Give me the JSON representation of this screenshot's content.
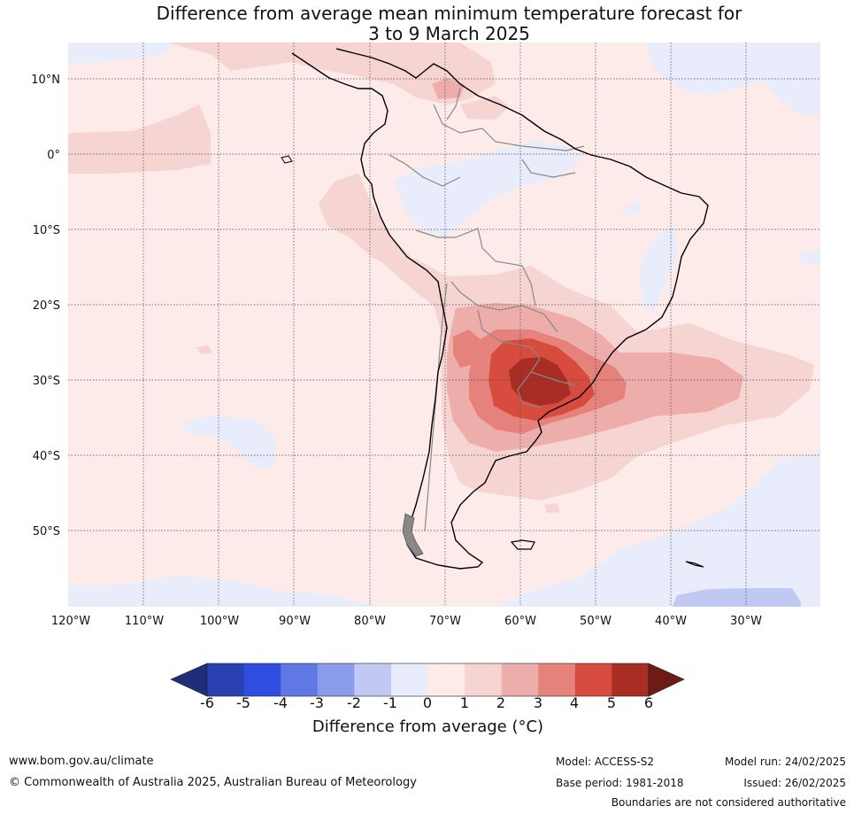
{
  "title": {
    "line1": "Difference from average mean minimum temperature forecast for",
    "line2": "3 to 9 March 2025"
  },
  "map": {
    "lon_labels": [
      "120°W",
      "110°W",
      "100°W",
      "90°W",
      "80°W",
      "70°W",
      "60°W",
      "50°W",
      "40°W",
      "30°W"
    ],
    "lat_labels": [
      "10°N",
      "0°",
      "10°S",
      "20°S",
      "30°S",
      "40°S",
      "50°S"
    ]
  },
  "colorbar": {
    "ticks": [
      "-6",
      "-5",
      "-4",
      "-3",
      "-2",
      "-1",
      "0",
      "1",
      "2",
      "3",
      "4",
      "5",
      "6"
    ],
    "colors": [
      "#1f2e7a",
      "#2a3fb0",
      "#2f4ee0",
      "#5f78e3",
      "#8a9bec",
      "#c0c8f3",
      "#e8ecfb",
      "#fcebe9",
      "#f6d4d1",
      "#edaeab",
      "#e5827c",
      "#d84c40",
      "#a82d24",
      "#6e1a16"
    ],
    "label": "Difference from average (°C)"
  },
  "footer": {
    "url": "www.bom.gov.au/climate",
    "copyright": "© Commonwealth of Australia 2025, Australian Bureau of Meteorology",
    "model": "Model: ACCESS-S2",
    "base_period": "Base period: 1981-2018",
    "model_run": "Model run: 24/02/2025",
    "issued": "Issued: 26/02/2025",
    "disclaimer": "Boundaries are not considered authoritative"
  }
}
